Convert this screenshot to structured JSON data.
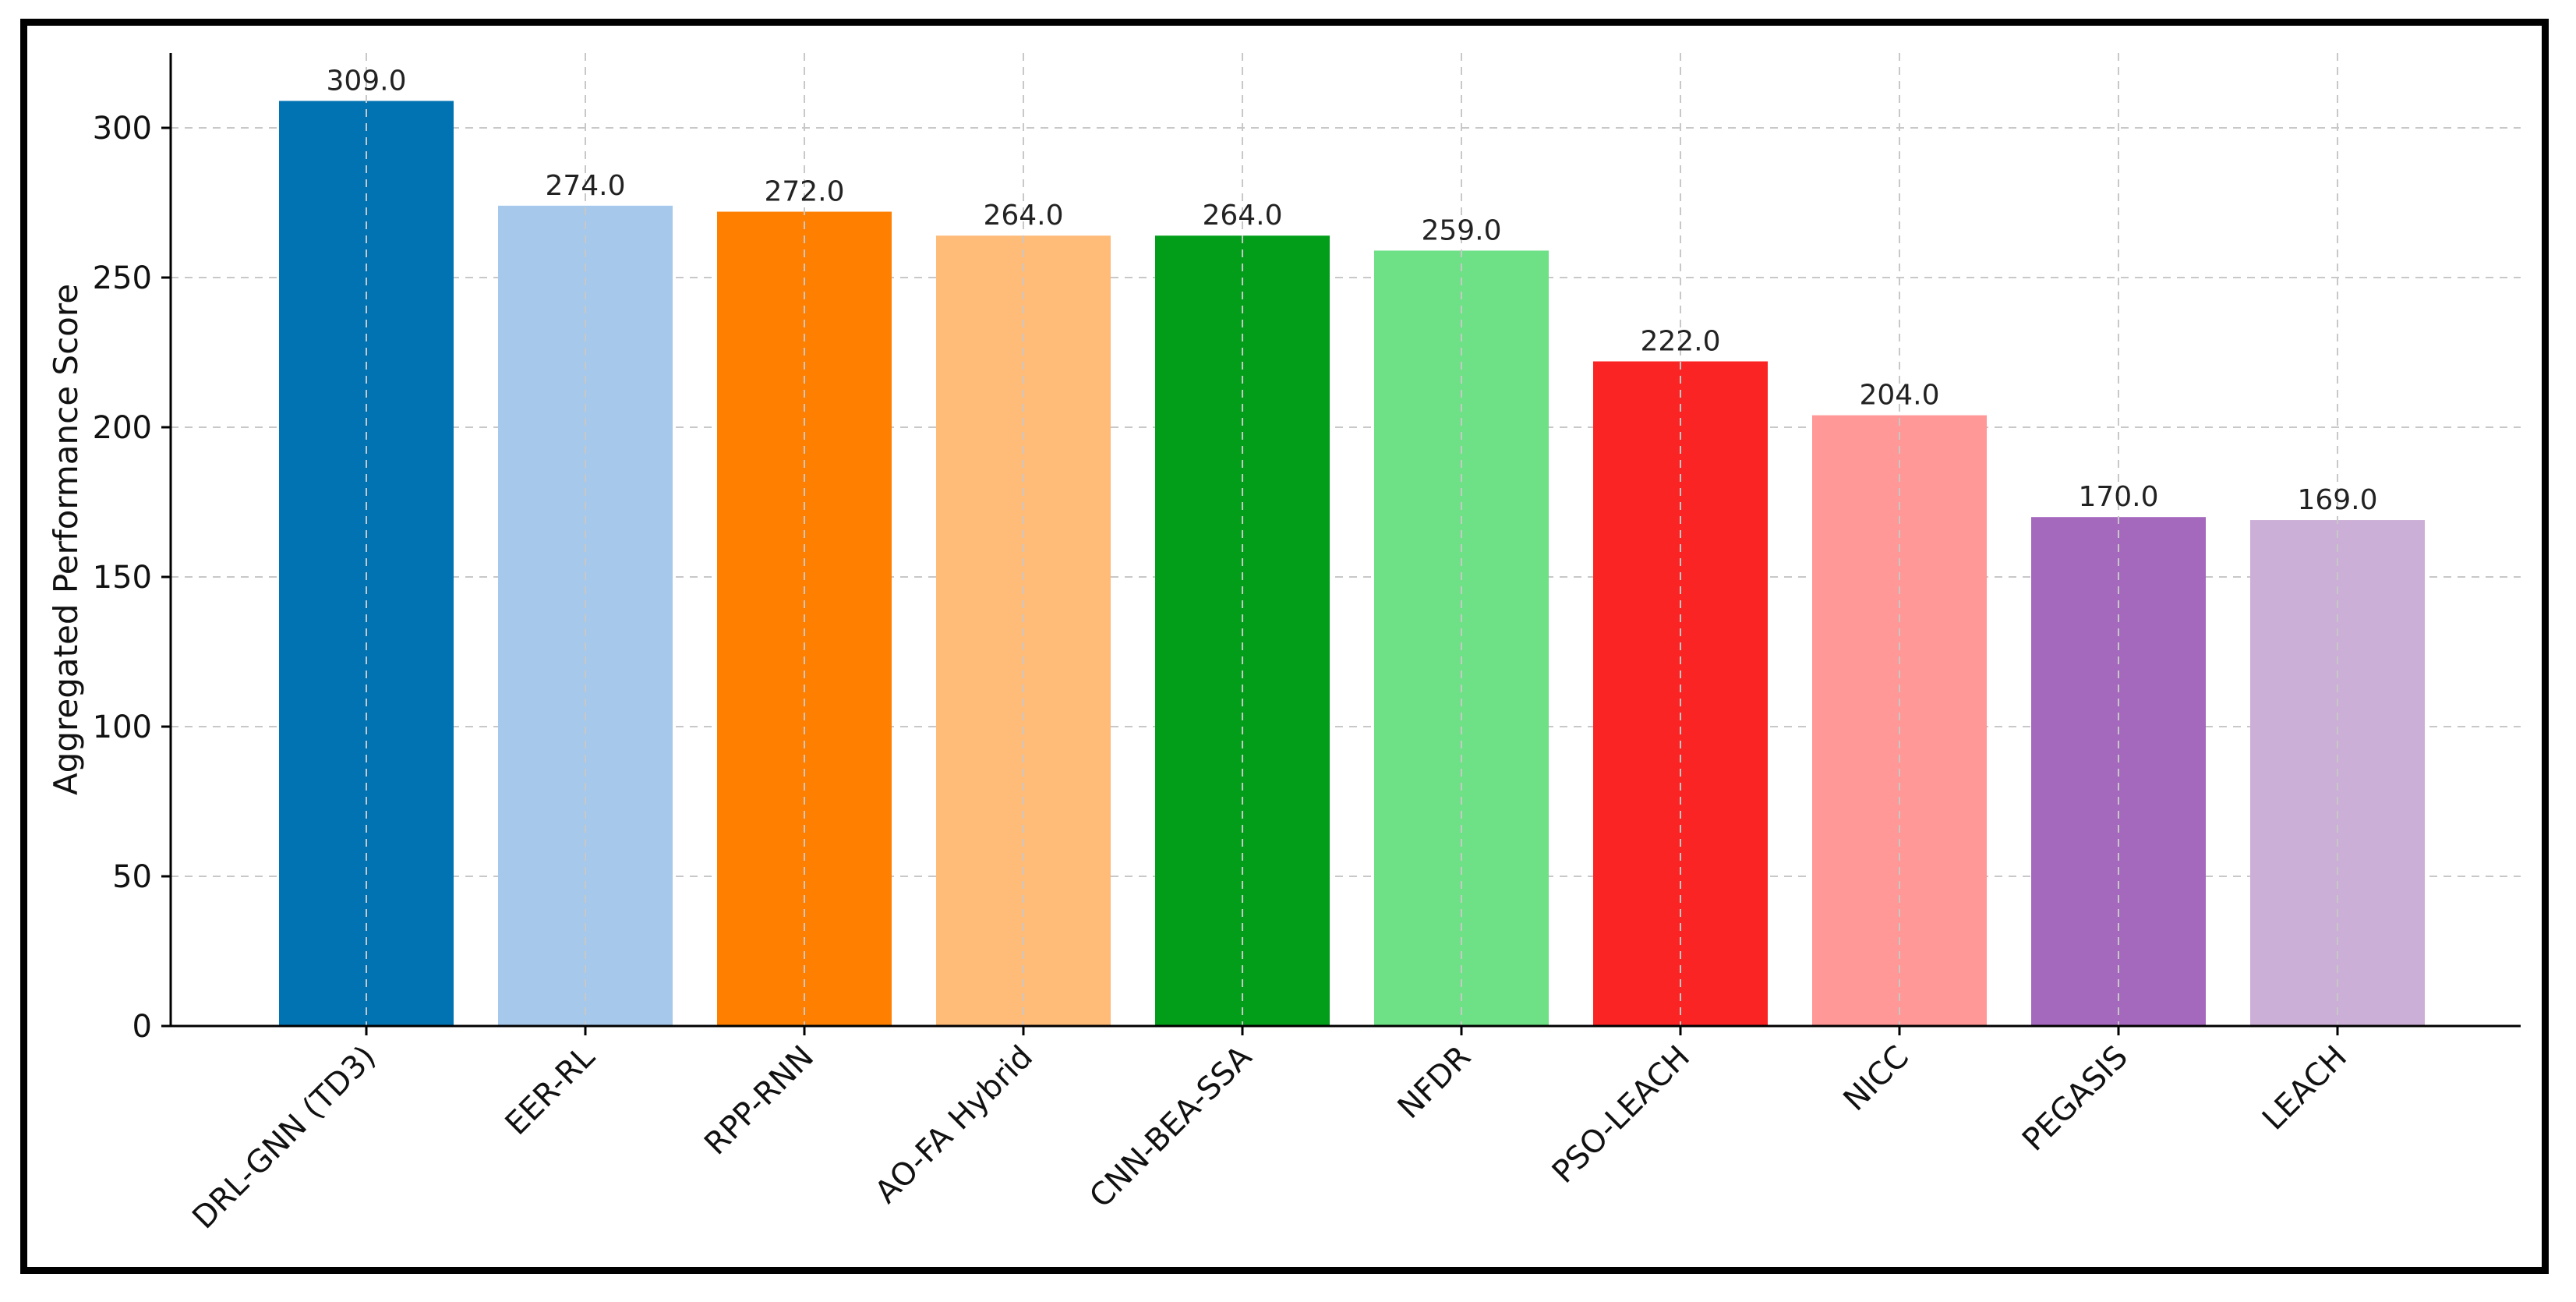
{
  "chart_data": {
    "type": "bar",
    "title": "",
    "xlabel": "",
    "ylabel": "Aggregated Performance Score",
    "ylim": [
      0,
      325
    ],
    "yticks": [
      0,
      50,
      100,
      150,
      200,
      250,
      300
    ],
    "grid": true,
    "categories": [
      "DRL-GNN (TD3)",
      "EER-RL",
      "RPP-RNN",
      "AO-FA Hybrid",
      "CNN-BEA-SSA",
      "NFDR",
      "PSO-LEACH",
      "NICC",
      "PEGASIS",
      "LEACH"
    ],
    "values": [
      309.0,
      274.0,
      272.0,
      264.0,
      264.0,
      259.0,
      222.0,
      204.0,
      170.0,
      169.0
    ],
    "value_labels": [
      "309.0",
      "274.0",
      "272.0",
      "264.0",
      "264.0",
      "259.0",
      "222.0",
      "204.0",
      "170.0",
      "169.0"
    ],
    "colors": [
      "#0173b2",
      "#a6c8ea",
      "#ff7f00",
      "#ffbb78",
      "#029e1a",
      "#6ee085",
      "#fb2424",
      "#ff9896",
      "#a469bd",
      "#ccafd6"
    ]
  }
}
